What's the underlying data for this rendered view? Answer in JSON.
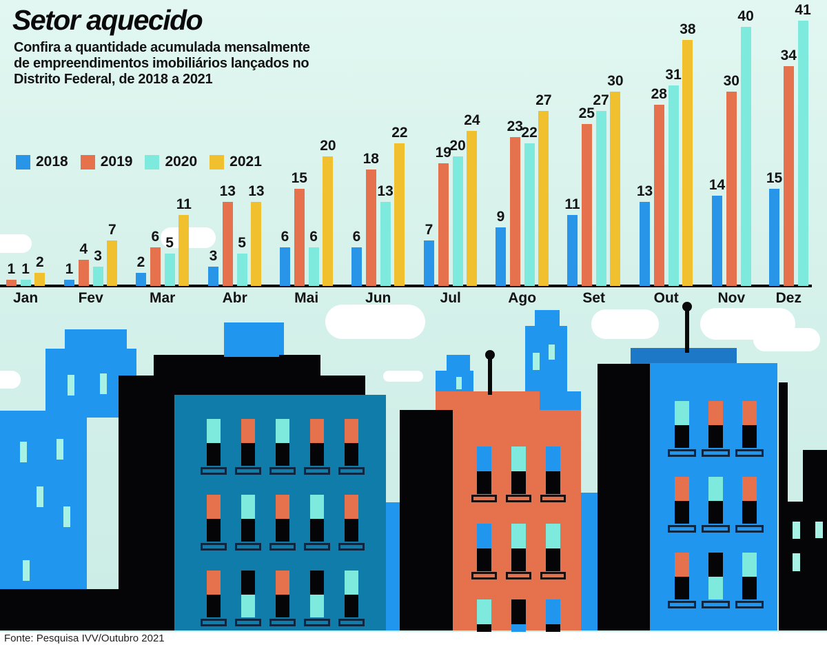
{
  "title": "Setor aquecido",
  "subtitle_lines": [
    "Confira a quantidade acumulada mensalmente",
    "de empreendimentos imobiliários lançados no",
    "Distrito Federal, de 2018 a 2021"
  ],
  "legend": [
    {
      "label": "2018",
      "color": "#2895e8"
    },
    {
      "label": "2019",
      "color": "#e5714d"
    },
    {
      "label": "2020",
      "color": "#7eeadd"
    },
    {
      "label": "2021",
      "color": "#f0c02f"
    }
  ],
  "chart_data": {
    "type": "bar",
    "categories": [
      "Jan",
      "Fev",
      "Mar",
      "Abr",
      "Mai",
      "Jun",
      "Jul",
      "Ago",
      "Set",
      "Out",
      "Nov",
      "Dez"
    ],
    "series": [
      {
        "name": "2018",
        "color": "#2895e8",
        "values": [
          null,
          1,
          2,
          3,
          6,
          6,
          7,
          9,
          11,
          13,
          14,
          15
        ]
      },
      {
        "name": "2019",
        "color": "#e5714d",
        "values": [
          1,
          4,
          6,
          13,
          15,
          18,
          19,
          23,
          25,
          28,
          30,
          34
        ]
      },
      {
        "name": "2020",
        "color": "#7eeadd",
        "values": [
          1,
          3,
          5,
          5,
          6,
          13,
          20,
          22,
          27,
          31,
          40,
          41
        ]
      },
      {
        "name": "2021",
        "color": "#f0c02f",
        "values": [
          2,
          7,
          11,
          13,
          20,
          22,
          24,
          27,
          30,
          38,
          null,
          null
        ]
      }
    ],
    "ylim": [
      0,
      41
    ],
    "grid": false,
    "value_labels": true,
    "legend_position": "top-left",
    "xlabel": "",
    "ylabel": ""
  },
  "footer": {
    "source": "Fonte: Pesquisa IVV/Outubro 2021"
  },
  "colors": {
    "sky_top": "#e2f7f1",
    "sky_bottom": "#cbece6",
    "axis": "#0d0d0d",
    "text": "#141414",
    "cloud": "#ffffff",
    "blue": "#2196ee",
    "orange": "#e5714d",
    "cyan": "#7eeadd",
    "yellow": "#f0c02f",
    "teal": "#107ca9",
    "roof": "#1e78c8",
    "black": "#050507",
    "window_pale": "#a8f1e5",
    "sill_outline_navy": "#0d2742",
    "sill_outline_dark": "#1c0d08",
    "footer_bg": "#ffffff"
  }
}
